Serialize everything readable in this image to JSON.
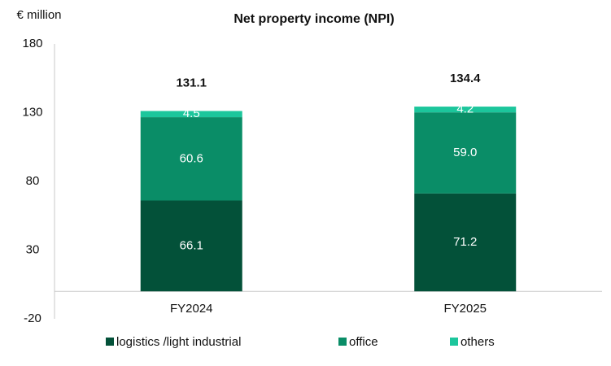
{
  "chart_data": {
    "type": "stacked_bar",
    "title": "Net property income (NPI)",
    "y_label": "€ million",
    "categories": [
      "FY2024",
      "FY2025"
    ],
    "series": [
      {
        "name": "logistics /light industrial",
        "color": "#035139",
        "values": [
          66.1,
          71.2
        ]
      },
      {
        "name": "office",
        "color": "#0a8d67",
        "values": [
          60.6,
          59.0
        ],
        "value_labels": [
          "60.6",
          "59.0"
        ]
      },
      {
        "name": "others",
        "color": "#1cc69c",
        "values": [
          4.5,
          4.2
        ]
      }
    ],
    "totals": [
      131.1,
      134.4
    ],
    "ylim": [
      -20,
      180
    ],
    "yticks": [
      -20,
      30,
      80,
      130,
      180
    ],
    "grid": false,
    "legend": "bottom"
  }
}
